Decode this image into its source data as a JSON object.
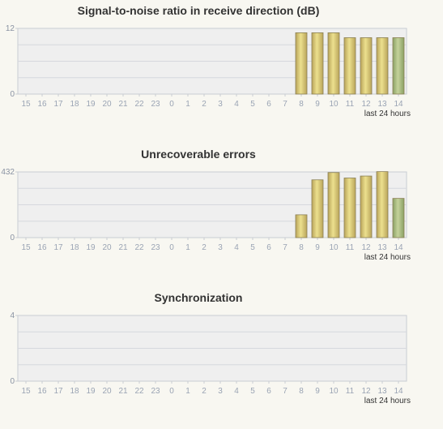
{
  "colors": {
    "bar_gold": "#c9b66a",
    "bar_green": "#9caf78",
    "plot_bg": "#efefef",
    "axis": "#c9ccd3"
  },
  "chart_data": [
    {
      "type": "bar",
      "title": "Signal-to-noise ratio in receive direction (dB)",
      "categories": [
        "15",
        "16",
        "17",
        "18",
        "19",
        "20",
        "21",
        "22",
        "23",
        "0",
        "1",
        "2",
        "3",
        "4",
        "5",
        "6",
        "7",
        "8",
        "9",
        "10",
        "11",
        "12",
        "13",
        "14"
      ],
      "values": [
        null,
        null,
        null,
        null,
        null,
        null,
        null,
        null,
        null,
        null,
        null,
        null,
        null,
        null,
        null,
        null,
        null,
        11.2,
        11.2,
        11.2,
        10.3,
        10.3,
        10.3,
        10.3
      ],
      "ylim": [
        0,
        12
      ],
      "yticks": [
        "0",
        "12"
      ],
      "note": "last 24 hours",
      "grid": true
    },
    {
      "type": "bar",
      "title": "Unrecoverable errors",
      "categories": [
        "15",
        "16",
        "17",
        "18",
        "19",
        "20",
        "21",
        "22",
        "23",
        "0",
        "1",
        "2",
        "3",
        "4",
        "5",
        "6",
        "7",
        "8",
        "9",
        "10",
        "11",
        "12",
        "13",
        "14"
      ],
      "values": [
        null,
        null,
        null,
        null,
        null,
        null,
        null,
        null,
        null,
        null,
        null,
        null,
        null,
        null,
        null,
        null,
        null,
        150,
        380,
        428,
        392,
        405,
        434,
        258
      ],
      "ylim": [
        0,
        432
      ],
      "yticks": [
        "0",
        "432"
      ],
      "note": "last 24 hours",
      "grid": true
    },
    {
      "type": "bar",
      "title": "Synchronization",
      "categories": [
        "15",
        "16",
        "17",
        "18",
        "19",
        "20",
        "21",
        "22",
        "23",
        "0",
        "1",
        "2",
        "3",
        "4",
        "5",
        "6",
        "7",
        "8",
        "9",
        "10",
        "11",
        "12",
        "13",
        "14"
      ],
      "values": [
        null,
        null,
        null,
        null,
        null,
        null,
        null,
        null,
        null,
        null,
        null,
        null,
        null,
        null,
        null,
        null,
        null,
        null,
        null,
        null,
        null,
        null,
        null,
        null
      ],
      "ylim": [
        0,
        4
      ],
      "yticks": [
        "0",
        "4"
      ],
      "note": "last 24 hours",
      "grid": true
    }
  ]
}
